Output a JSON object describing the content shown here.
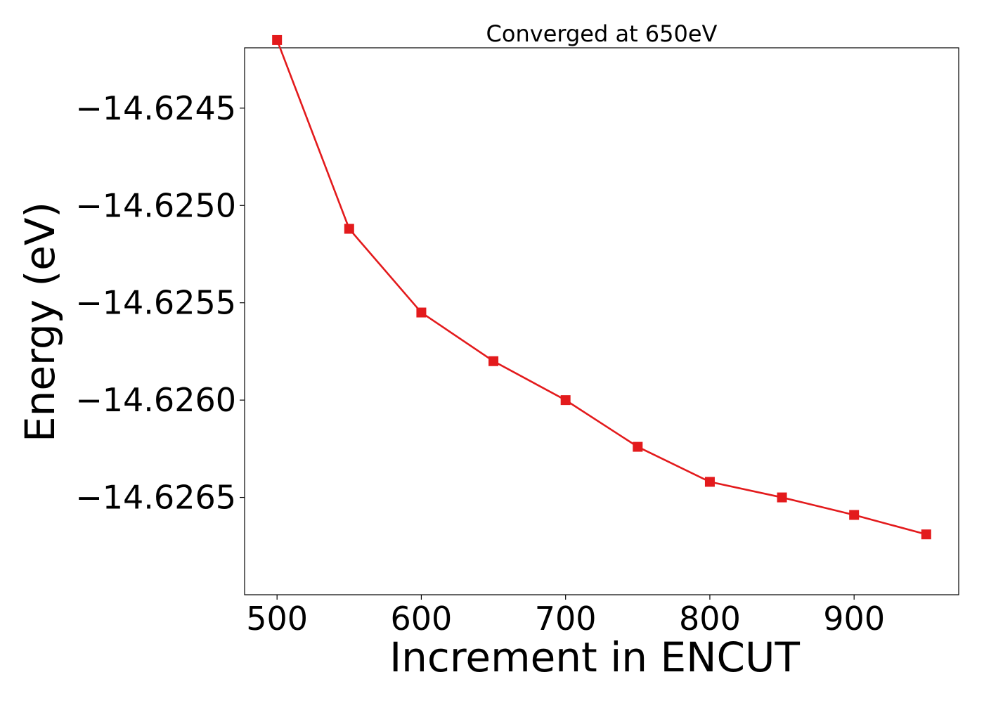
{
  "chart_data": {
    "type": "line",
    "title": "Converged at 650eV",
    "xlabel": "Increment in ENCUT",
    "ylabel": "Energy (eV)",
    "x": [
      500,
      550,
      600,
      650,
      700,
      750,
      800,
      850,
      900,
      950
    ],
    "series": [
      {
        "values": [
          -14.62415,
          -14.62512,
          -14.62555,
          -14.6258,
          -14.626,
          -14.62624,
          -14.62642,
          -14.6265,
          -14.62659,
          -14.62669
        ],
        "color": "#e31a1c",
        "marker": "square"
      }
    ],
    "xticks": [
      500,
      600,
      700,
      800,
      900
    ],
    "xtick_labels": [
      "500",
      "600",
      "700",
      "800",
      "900"
    ],
    "yticks": [
      -14.6245,
      -14.625,
      -14.6255,
      -14.626,
      -14.6265
    ],
    "ytick_labels": [
      "−14.6245",
      "−14.6250",
      "−14.6255",
      "−14.6260",
      "−14.6265"
    ],
    "xlim": [
      477.5,
      972.5
    ],
    "ylim": [
      -14.627,
      -14.62419
    ],
    "grid": false,
    "legend": false
  }
}
